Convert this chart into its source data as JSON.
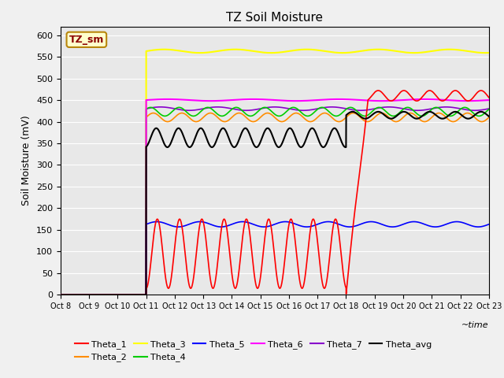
{
  "title": "TZ Soil Moisture",
  "xlabel": "~time",
  "ylabel": "Soil Moisture (mV)",
  "ylim": [
    0,
    620
  ],
  "yticks": [
    0,
    50,
    100,
    150,
    200,
    250,
    300,
    350,
    400,
    450,
    500,
    550,
    600
  ],
  "sensor_label": "TZ_sm",
  "background_color": "#e8e8e8",
  "plot_bg": "#dcdcdc",
  "colors": {
    "Theta_1": "#ff0000",
    "Theta_2": "#ff8c00",
    "Theta_3": "#ffff00",
    "Theta_4": "#00cc00",
    "Theta_5": "#0000ff",
    "Theta_6": "#ff00ff",
    "Theta_7": "#8800cc",
    "Theta_avg": "#000000"
  },
  "tick_labels": [
    "Oct 8",
    "Oct 9",
    "Oct 10",
    "Oct 11",
    "Oct 12",
    "Oct 13",
    "Oct 14",
    "Oct 15",
    "Oct 16",
    "Oct 17",
    "Oct 18",
    "Oct 19",
    "Oct 20",
    "Oct 21",
    "Oct 22",
    "Oct 23"
  ]
}
